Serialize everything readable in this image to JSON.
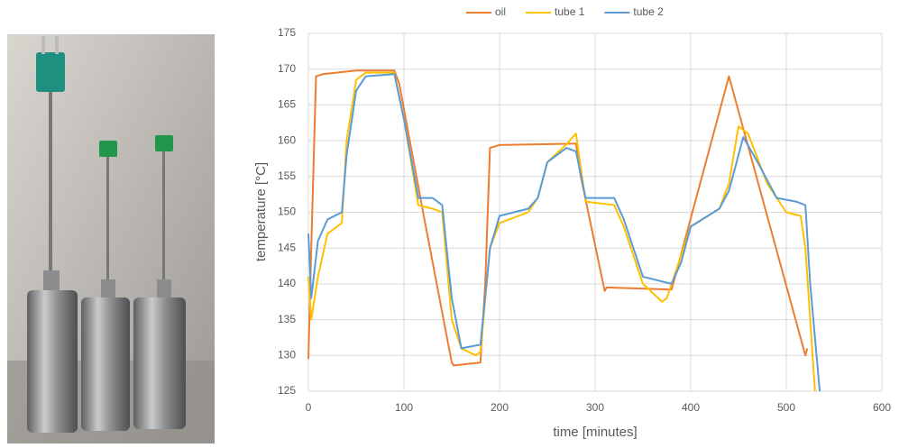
{
  "chart_data": {
    "type": "line",
    "xlabel": "time [minutes]",
    "ylabel": "temperature [°C]",
    "xlim": [
      0,
      600
    ],
    "xticks": [
      0,
      100,
      200,
      300,
      400,
      500,
      600
    ],
    "ylim": [
      125,
      175
    ],
    "yticks": [
      125,
      130,
      135,
      140,
      145,
      150,
      155,
      160,
      165,
      170,
      175
    ],
    "grid": true,
    "legend": "top",
    "series": [
      {
        "name": "oil",
        "color": "#ed7d31",
        "x": [
          0,
          3,
          8,
          15,
          50,
          90,
          95,
          120,
          150,
          152,
          180,
          185,
          190,
          200,
          280,
          285,
          310,
          312,
          380,
          440,
          520,
          522
        ],
        "values": [
          129.5,
          145,
          169,
          169.3,
          169.8,
          169.8,
          168,
          150,
          129,
          128.6,
          129,
          140,
          159,
          159.4,
          159.6,
          155,
          139,
          139.5,
          139.2,
          169,
          130,
          131
        ]
      },
      {
        "name": "tube 1",
        "color": "#ffc000",
        "x": [
          0,
          3,
          10,
          20,
          35,
          40,
          50,
          60,
          90,
          100,
          115,
          130,
          140,
          150,
          160,
          175,
          180,
          190,
          200,
          230,
          240,
          250,
          270,
          280,
          290,
          320,
          330,
          350,
          370,
          375,
          385,
          400,
          430,
          440,
          450,
          460,
          480,
          500,
          515,
          520,
          530
        ],
        "values": [
          141,
          135,
          141,
          147,
          148.5,
          160,
          168.5,
          169.5,
          169.5,
          163,
          151,
          150.5,
          150,
          135,
          131,
          130,
          130.5,
          145,
          148.5,
          150,
          152,
          157,
          159.5,
          161,
          151.5,
          151,
          148,
          140,
          137.5,
          138,
          142,
          148,
          150.5,
          154,
          162,
          161,
          154,
          150,
          149.5,
          145,
          125
        ]
      },
      {
        "name": "tube 2",
        "color": "#5b9bd5",
        "x": [
          0,
          3,
          10,
          20,
          35,
          40,
          50,
          60,
          90,
          100,
          115,
          130,
          140,
          150,
          160,
          180,
          190,
          200,
          230,
          240,
          250,
          270,
          280,
          290,
          320,
          330,
          350,
          380,
          390,
          400,
          430,
          440,
          455,
          470,
          490,
          510,
          520,
          525,
          535
        ],
        "values": [
          147,
          138,
          146,
          149,
          150,
          158,
          167,
          169,
          169.3,
          163,
          152,
          152,
          151,
          138,
          131,
          131.5,
          145,
          149.5,
          150.5,
          152,
          157,
          159,
          158.5,
          152,
          152,
          149,
          141,
          140,
          143,
          148,
          150.5,
          153,
          160.5,
          157,
          152,
          151.5,
          151,
          140,
          125
        ]
      }
    ]
  }
}
